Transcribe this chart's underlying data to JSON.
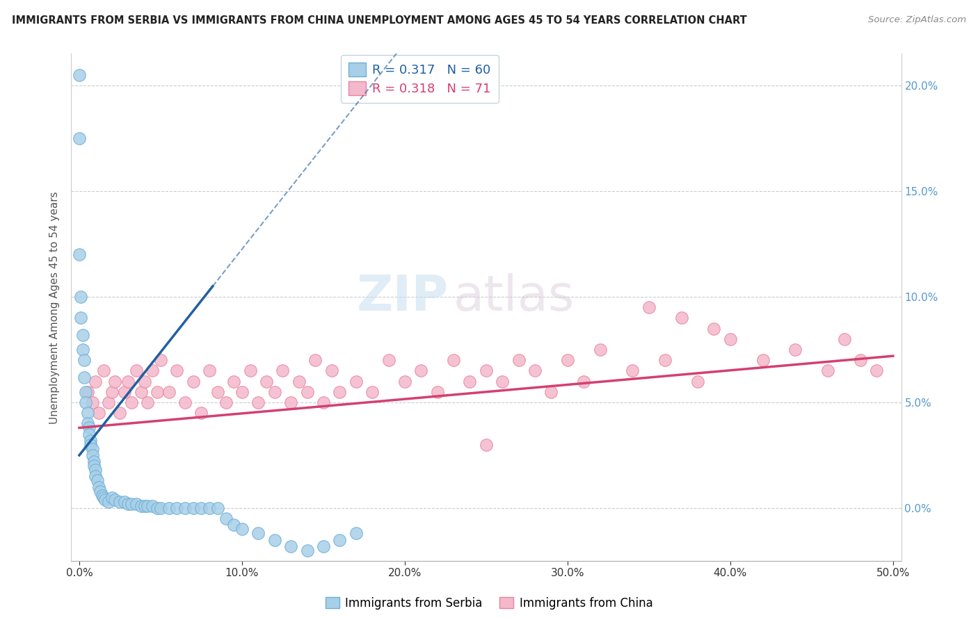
{
  "title": "IMMIGRANTS FROM SERBIA VS IMMIGRANTS FROM CHINA UNEMPLOYMENT AMONG AGES 45 TO 54 YEARS CORRELATION CHART",
  "source": "Source: ZipAtlas.com",
  "ylabel": "Unemployment Among Ages 45 to 54 years",
  "xlim": [
    -0.005,
    0.505
  ],
  "ylim": [
    -0.025,
    0.215
  ],
  "xticks": [
    0.0,
    0.1,
    0.2,
    0.3,
    0.4,
    0.5
  ],
  "xticklabels": [
    "0.0%",
    "10.0%",
    "20.0%",
    "30.0%",
    "40.0%",
    "50.0%"
  ],
  "yticks": [
    0.0,
    0.05,
    0.1,
    0.15,
    0.2
  ],
  "yticklabels": [
    "0.0%",
    "5.0%",
    "10.0%",
    "15.0%",
    "20.0%"
  ],
  "serbia_color": "#a8cfe8",
  "serbia_edge_color": "#6baed6",
  "china_color": "#f4b8cc",
  "china_edge_color": "#e8849e",
  "serbia_trend_color": "#2060a0",
  "china_trend_color": "#d44070",
  "serbia_R": 0.317,
  "serbia_N": 60,
  "china_R": 0.318,
  "china_N": 71,
  "watermark_zip": "ZIP",
  "watermark_atlas": "atlas",
  "serbia_trend_x0": 0.0,
  "serbia_trend_y0": 0.025,
  "serbia_trend_x1": 0.082,
  "serbia_trend_y1": 0.105,
  "serbia_trend_solid_end": 0.082,
  "serbia_trend_dash_end": 0.26,
  "china_trend_x0": 0.0,
  "china_trend_y0": 0.038,
  "china_trend_x1": 0.5,
  "china_trend_y1": 0.072,
  "serbia_x": [
    0.0,
    0.0,
    0.0,
    0.001,
    0.001,
    0.002,
    0.002,
    0.003,
    0.003,
    0.004,
    0.004,
    0.005,
    0.005,
    0.006,
    0.006,
    0.007,
    0.007,
    0.008,
    0.008,
    0.009,
    0.009,
    0.01,
    0.01,
    0.011,
    0.012,
    0.013,
    0.014,
    0.015,
    0.016,
    0.018,
    0.02,
    0.022,
    0.025,
    0.028,
    0.03,
    0.032,
    0.035,
    0.038,
    0.04,
    0.042,
    0.045,
    0.048,
    0.05,
    0.055,
    0.06,
    0.065,
    0.07,
    0.075,
    0.08,
    0.085,
    0.09,
    0.095,
    0.1,
    0.11,
    0.12,
    0.13,
    0.14,
    0.15,
    0.16,
    0.17
  ],
  "serbia_y": [
    0.205,
    0.175,
    0.12,
    0.1,
    0.09,
    0.082,
    0.075,
    0.07,
    0.062,
    0.055,
    0.05,
    0.045,
    0.04,
    0.038,
    0.035,
    0.032,
    0.03,
    0.028,
    0.025,
    0.022,
    0.02,
    0.018,
    0.015,
    0.013,
    0.01,
    0.008,
    0.006,
    0.005,
    0.004,
    0.003,
    0.005,
    0.004,
    0.003,
    0.003,
    0.002,
    0.002,
    0.002,
    0.001,
    0.001,
    0.001,
    0.001,
    0.0,
    0.0,
    0.0,
    0.0,
    0.0,
    0.0,
    0.0,
    0.0,
    0.0,
    -0.005,
    -0.008,
    -0.01,
    -0.012,
    -0.015,
    -0.018,
    -0.02,
    -0.018,
    -0.015,
    -0.012
  ],
  "china_x": [
    0.005,
    0.008,
    0.01,
    0.012,
    0.015,
    0.018,
    0.02,
    0.022,
    0.025,
    0.028,
    0.03,
    0.032,
    0.035,
    0.038,
    0.04,
    0.042,
    0.045,
    0.048,
    0.05,
    0.055,
    0.06,
    0.065,
    0.07,
    0.075,
    0.08,
    0.085,
    0.09,
    0.095,
    0.1,
    0.105,
    0.11,
    0.115,
    0.12,
    0.125,
    0.13,
    0.135,
    0.14,
    0.145,
    0.15,
    0.155,
    0.16,
    0.17,
    0.18,
    0.19,
    0.2,
    0.21,
    0.22,
    0.23,
    0.24,
    0.25,
    0.26,
    0.27,
    0.28,
    0.29,
    0.3,
    0.31,
    0.32,
    0.34,
    0.36,
    0.38,
    0.4,
    0.42,
    0.44,
    0.46,
    0.47,
    0.48,
    0.49,
    0.35,
    0.37,
    0.39,
    0.25
  ],
  "china_y": [
    0.055,
    0.05,
    0.06,
    0.045,
    0.065,
    0.05,
    0.055,
    0.06,
    0.045,
    0.055,
    0.06,
    0.05,
    0.065,
    0.055,
    0.06,
    0.05,
    0.065,
    0.055,
    0.07,
    0.055,
    0.065,
    0.05,
    0.06,
    0.045,
    0.065,
    0.055,
    0.05,
    0.06,
    0.055,
    0.065,
    0.05,
    0.06,
    0.055,
    0.065,
    0.05,
    0.06,
    0.055,
    0.07,
    0.05,
    0.065,
    0.055,
    0.06,
    0.055,
    0.07,
    0.06,
    0.065,
    0.055,
    0.07,
    0.06,
    0.065,
    0.06,
    0.07,
    0.065,
    0.055,
    0.07,
    0.06,
    0.075,
    0.065,
    0.07,
    0.06,
    0.08,
    0.07,
    0.075,
    0.065,
    0.08,
    0.07,
    0.065,
    0.095,
    0.09,
    0.085,
    0.03
  ]
}
